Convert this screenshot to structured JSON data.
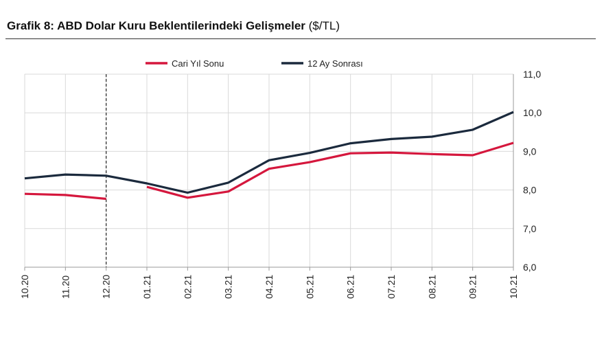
{
  "title_bold": "Grafik 8: ABD Dolar Kuru Beklentilerindeki Gelişmeler",
  "title_unit": "($/TL)",
  "colors": {
    "cari": "#d5173d",
    "sonrasi": "#1b2a3d",
    "grid": "#d9d9d9"
  },
  "chart_data": {
    "type": "line",
    "categories": [
      "10.20",
      "11.20",
      "12.20",
      "01.21",
      "02.21",
      "03.21",
      "04.21",
      "05.21",
      "06.21",
      "07.21",
      "08.21",
      "09.21",
      "10.21"
    ],
    "series": [
      {
        "name": "Cari Yıl Sonu",
        "values": [
          7.9,
          7.87,
          7.77,
          8.08,
          7.8,
          7.96,
          8.55,
          8.72,
          8.95,
          8.97,
          8.93,
          8.9,
          9.22
        ],
        "break_after_index": 2
      },
      {
        "name": "12 Ay Sonrası",
        "values": [
          8.3,
          8.4,
          8.37,
          8.17,
          7.93,
          8.19,
          8.77,
          8.96,
          9.21,
          9.32,
          9.38,
          9.56,
          10.02
        ]
      }
    ],
    "ylim": [
      6.0,
      11.0
    ],
    "yticks": [
      "11,0",
      "10,0",
      "9,0",
      "8,0",
      "7,0",
      "6,0"
    ],
    "ytick_values": [
      11,
      10,
      9,
      8,
      7,
      6
    ],
    "marker_line_category": "12.20",
    "grid": true,
    "legend_position": "top-center"
  }
}
